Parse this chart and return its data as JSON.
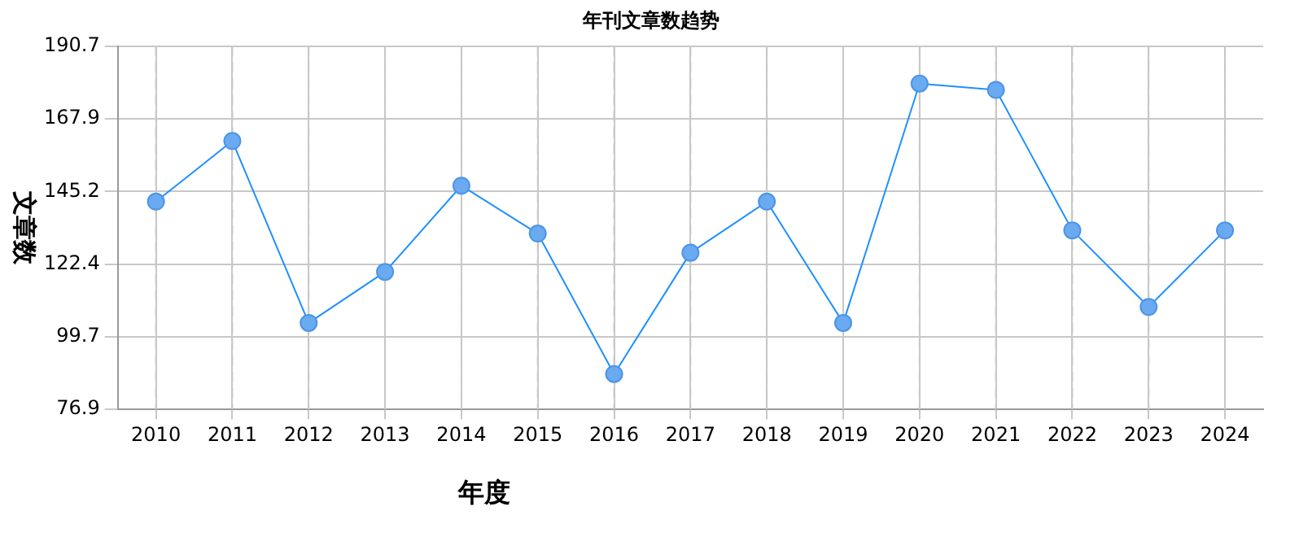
{
  "chart_data": {
    "type": "line",
    "title": "年刊文章数趋势",
    "xlabel": "年度",
    "ylabel": "文章数",
    "categories": [
      "2010",
      "2011",
      "2012",
      "2013",
      "2014",
      "2015",
      "2016",
      "2017",
      "2018",
      "2019",
      "2020",
      "2021",
      "2022",
      "2023",
      "2024"
    ],
    "series": [
      {
        "color": "#1e90ff",
        "values": [
          142,
          161,
          104,
          120,
          147,
          132,
          88,
          126,
          142,
          104,
          179,
          177,
          133,
          109,
          133
        ]
      }
    ],
    "ylim": [
      76.9,
      190.7
    ],
    "yticks": [
      76.9,
      99.7,
      122.4,
      145.2,
      167.9,
      190.7
    ],
    "grid": true,
    "legend": false,
    "marker": "circle",
    "line_style": "solid"
  }
}
